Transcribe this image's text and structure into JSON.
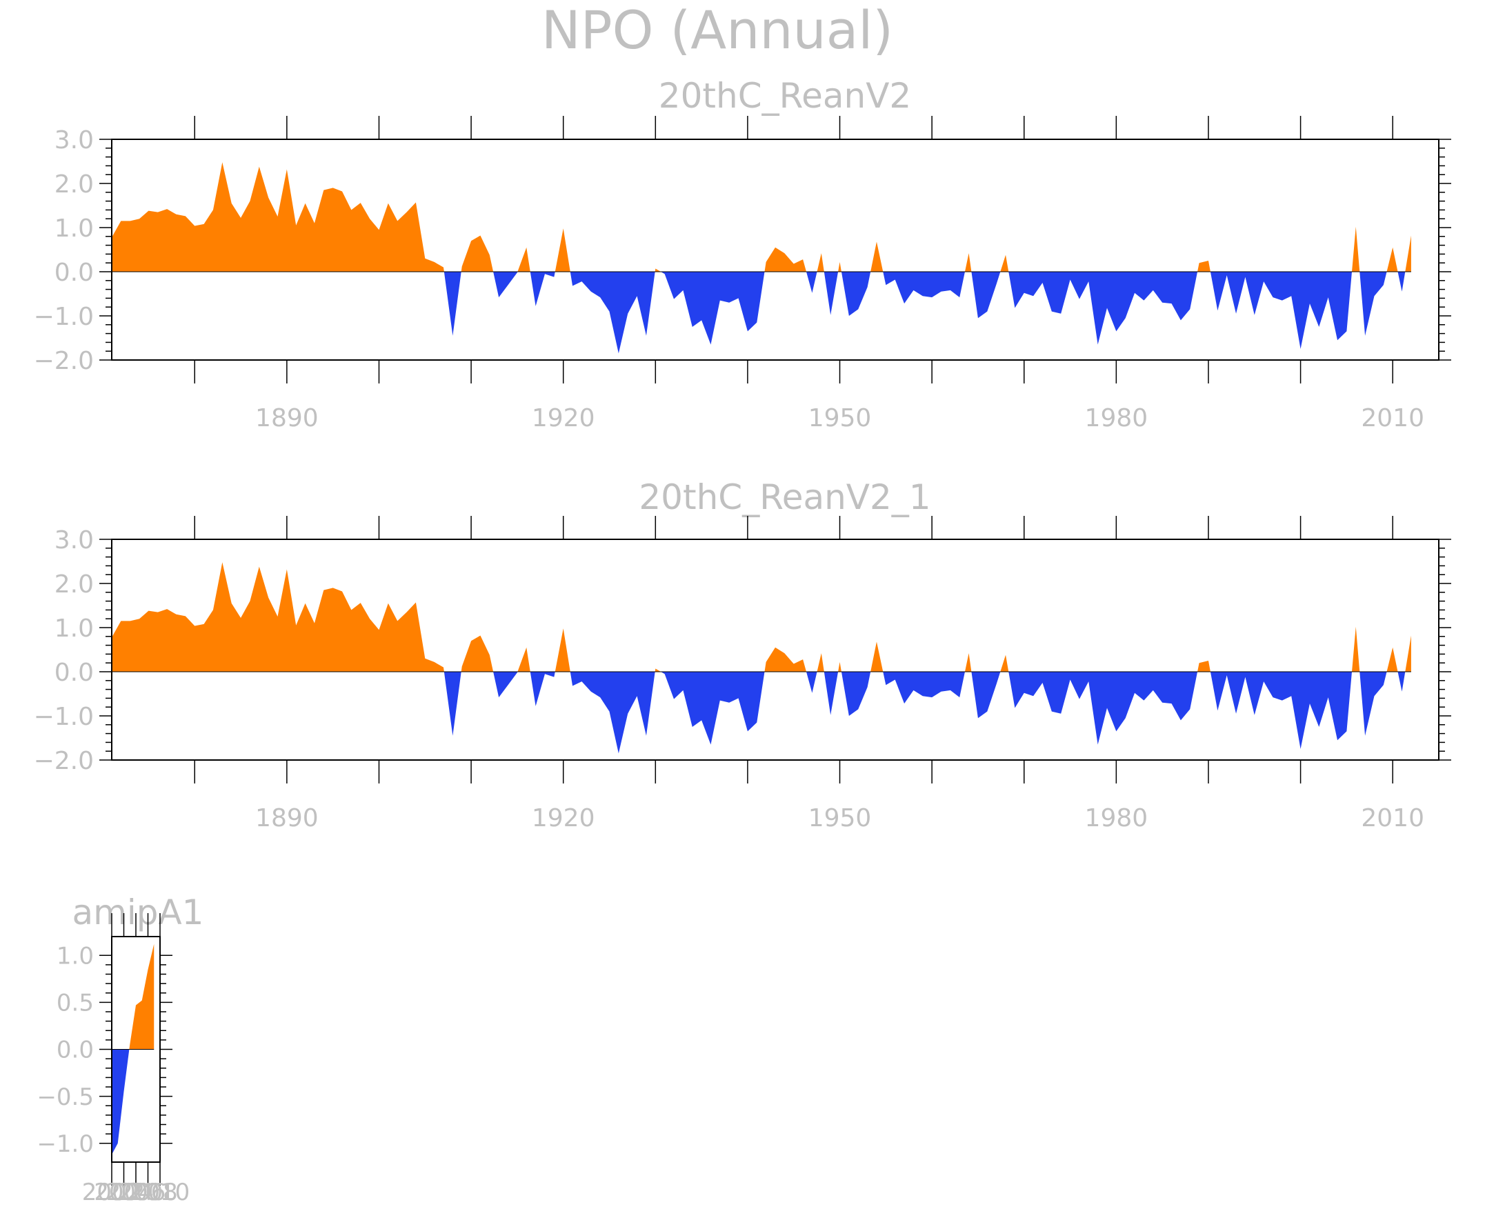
{
  "figure": {
    "title": "NPO (Annual)",
    "colors": {
      "positive": "#ff8000",
      "negative": "#2340ee",
      "text": "#c0c0c0",
      "axis": "#000000"
    }
  },
  "chart_data": [
    {
      "type": "area",
      "title": "20thC_ReanV2",
      "xlabel": "",
      "ylabel": "",
      "xlim": [
        1871,
        2015
      ],
      "ylim": [
        -2,
        3
      ],
      "yticks": [
        "3.0",
        "2.0",
        "1.0",
        "0.0",
        "−1.0",
        "−2.0"
      ],
      "xticks": [
        "1890",
        "1920",
        "1950",
        "1980",
        "2010"
      ],
      "grid": false,
      "fill_positive": "#ff8000",
      "fill_negative": "#2340ee",
      "x_start": 1871,
      "values": [
        0.78,
        1.15,
        1.15,
        1.2,
        1.38,
        1.35,
        1.42,
        1.3,
        1.26,
        1.04,
        1.08,
        1.4,
        2.48,
        1.55,
        1.22,
        1.6,
        2.38,
        1.68,
        1.25,
        2.32,
        1.05,
        1.55,
        1.1,
        1.85,
        1.9,
        1.82,
        1.4,
        1.56,
        1.2,
        0.95,
        1.55,
        1.15,
        1.35,
        1.57,
        0.3,
        0.22,
        0.1,
        -1.45,
        0.12,
        0.7,
        0.82,
        0.38,
        -0.58,
        -0.3,
        -0.02,
        0.55,
        -0.78,
        -0.05,
        -0.12,
        0.98,
        -0.32,
        -0.22,
        -0.45,
        -0.58,
        -0.9,
        -1.85,
        -0.95,
        -0.55,
        -1.45,
        0.07,
        -0.05,
        -0.62,
        -0.42,
        -1.25,
        -1.1,
        -1.65,
        -0.65,
        -0.7,
        -0.6,
        -1.35,
        -1.15,
        0.22,
        0.55,
        0.42,
        0.18,
        0.28,
        -0.48,
        0.42,
        -0.98,
        0.22,
        -1.0,
        -0.85,
        -0.35,
        0.68,
        -0.3,
        -0.18,
        -0.72,
        -0.42,
        -0.55,
        -0.58,
        -0.45,
        -0.42,
        -0.58,
        0.42,
        -1.05,
        -0.9,
        -0.28,
        0.38,
        -0.82,
        -0.48,
        -0.55,
        -0.25,
        -0.9,
        -0.95,
        -0.18,
        -0.62,
        -0.22,
        -1.65,
        -0.82,
        -1.35,
        -1.05,
        -0.48,
        -0.65,
        -0.42,
        -0.7,
        -0.72,
        -1.1,
        -0.85,
        0.2,
        0.25,
        -0.88,
        -0.08,
        -0.95,
        -0.12,
        -0.98,
        -0.22,
        -0.58,
        -0.65,
        -0.55,
        -1.75,
        -0.72,
        -1.25,
        -0.58,
        -1.55,
        -1.35,
        1.02,
        -1.45,
        -0.55,
        -0.3,
        0.55,
        -0.45,
        0.82
      ]
    },
    {
      "type": "area",
      "title": "20thC_ReanV2_1",
      "xlabel": "",
      "ylabel": "",
      "xlim": [
        1871,
        2015
      ],
      "ylim": [
        -2,
        3
      ],
      "yticks": [
        "3.0",
        "2.0",
        "1.0",
        "0.0",
        "−1.0",
        "−2.0"
      ],
      "xticks": [
        "1890",
        "1920",
        "1950",
        "1980",
        "2010"
      ],
      "grid": false,
      "fill_positive": "#ff8000",
      "fill_negative": "#2340ee",
      "x_start": 1871,
      "values": [
        0.78,
        1.15,
        1.15,
        1.2,
        1.38,
        1.35,
        1.42,
        1.3,
        1.26,
        1.04,
        1.08,
        1.4,
        2.48,
        1.55,
        1.22,
        1.6,
        2.38,
        1.68,
        1.25,
        2.32,
        1.05,
        1.55,
        1.1,
        1.85,
        1.9,
        1.82,
        1.4,
        1.56,
        1.2,
        0.95,
        1.55,
        1.15,
        1.35,
        1.57,
        0.3,
        0.22,
        0.1,
        -1.45,
        0.12,
        0.7,
        0.82,
        0.38,
        -0.58,
        -0.3,
        -0.02,
        0.55,
        -0.78,
        -0.05,
        -0.12,
        0.98,
        -0.32,
        -0.22,
        -0.45,
        -0.58,
        -0.9,
        -1.85,
        -0.95,
        -0.55,
        -1.45,
        0.07,
        -0.05,
        -0.62,
        -0.42,
        -1.25,
        -1.1,
        -1.65,
        -0.65,
        -0.7,
        -0.6,
        -1.35,
        -1.15,
        0.22,
        0.55,
        0.42,
        0.18,
        0.28,
        -0.48,
        0.42,
        -0.98,
        0.22,
        -1.0,
        -0.85,
        -0.35,
        0.68,
        -0.3,
        -0.18,
        -0.72,
        -0.42,
        -0.55,
        -0.58,
        -0.45,
        -0.42,
        -0.58,
        0.42,
        -1.05,
        -0.9,
        -0.28,
        0.38,
        -0.82,
        -0.48,
        -0.55,
        -0.25,
        -0.9,
        -0.95,
        -0.18,
        -0.62,
        -0.22,
        -1.65,
        -0.82,
        -1.35,
        -1.05,
        -0.48,
        -0.65,
        -0.42,
        -0.7,
        -0.72,
        -1.1,
        -0.85,
        0.2,
        0.25,
        -0.88,
        -0.08,
        -0.95,
        -0.12,
        -0.98,
        -0.22,
        -0.58,
        -0.65,
        -0.55,
        -1.75,
        -0.72,
        -1.25,
        -0.58,
        -1.55,
        -1.35,
        1.02,
        -1.45,
        -0.55,
        -0.3,
        0.55,
        -0.45,
        0.82
      ]
    },
    {
      "type": "area",
      "title": "amipA1",
      "xlabel": "",
      "ylabel": "",
      "xlim": [
        2002,
        2010
      ],
      "ylim": [
        -1.2,
        1.2
      ],
      "yticks": [
        "1.0",
        "0.5",
        "0.0",
        "−0.5",
        "−1.0"
      ],
      "xticks": [
        "2002",
        "2004",
        "2006",
        "2008",
        "2010"
      ],
      "grid": false,
      "fill_positive": "#ff8000",
      "fill_negative": "#2340ee",
      "x": [
        2002,
        2003,
        2004,
        2005,
        2006,
        2007,
        2008,
        2009
      ],
      "values": [
        -1.12,
        -1.0,
        -0.45,
        0.05,
        0.47,
        0.52,
        0.85,
        1.12
      ]
    }
  ]
}
